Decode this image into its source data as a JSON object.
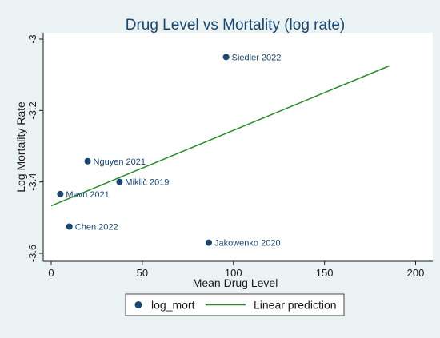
{
  "colors": {
    "background": "#eaf2f3",
    "plot_area": "#ffffff",
    "title": "#1a476f",
    "axis_text": "#1a1a1a",
    "point": "#1a476f",
    "fit_line": "#2d8a2d",
    "label": "#1a476f"
  },
  "chart_data": {
    "type": "scatter",
    "title": "Drug Level vs Mortality (log rate)",
    "xlabel": "Mean Drug Level",
    "ylabel": "Log Mortality Rate",
    "xlim": [
      0,
      200
    ],
    "ylim": [
      -3.6,
      -3.0
    ],
    "xticks": [
      0,
      50,
      100,
      150,
      200
    ],
    "xtick_labels": [
      "0",
      "50",
      "100",
      "150",
      "200"
    ],
    "yticks": [
      -3,
      -3.2,
      -3.4,
      -3.6
    ],
    "ytick_labels": [
      "-3",
      "-3.2",
      "-3.4",
      "-3.6"
    ],
    "grid": false,
    "legend_position": "bottom",
    "series": [
      {
        "name": "log_mort",
        "kind": "scatter",
        "marker_icon": "filled-circle",
        "points": [
          {
            "label": "Siedler 2022",
            "x": 96,
            "y": -3.05
          },
          {
            "label": "Nguyen 2021",
            "x": 20,
            "y": -3.342
          },
          {
            "label": "Miklič 2019",
            "x": 37.5,
            "y": -3.4
          },
          {
            "label": "Mavri 2021",
            "x": 5,
            "y": -3.434
          },
          {
            "label": "Chen 2022",
            "x": 10,
            "y": -3.525
          },
          {
            "label": "Jakowenko 2020",
            "x": 86.5,
            "y": -3.57
          }
        ]
      },
      {
        "name": "Linear prediction",
        "kind": "line",
        "x": [
          0,
          185.5
        ],
        "y": [
          -3.467,
          -3.075
        ]
      }
    ]
  }
}
